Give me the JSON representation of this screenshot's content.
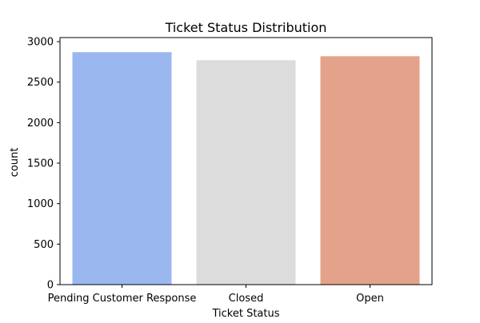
{
  "chart_data": {
    "type": "bar",
    "title": "Ticket Status Distribution",
    "xlabel": "Ticket Status",
    "ylabel": "count",
    "categories": [
      "Pending Customer Response",
      "Closed",
      "Open"
    ],
    "values": [
      2870,
      2770,
      2820
    ],
    "colors": [
      "#9bb7f0",
      "#dcdcdc",
      "#e5a28b"
    ],
    "ylim": [
      0,
      3050
    ],
    "yticks": [
      0,
      500,
      1000,
      1500,
      2000,
      2500,
      3000
    ],
    "grid": false,
    "legend": "none"
  }
}
